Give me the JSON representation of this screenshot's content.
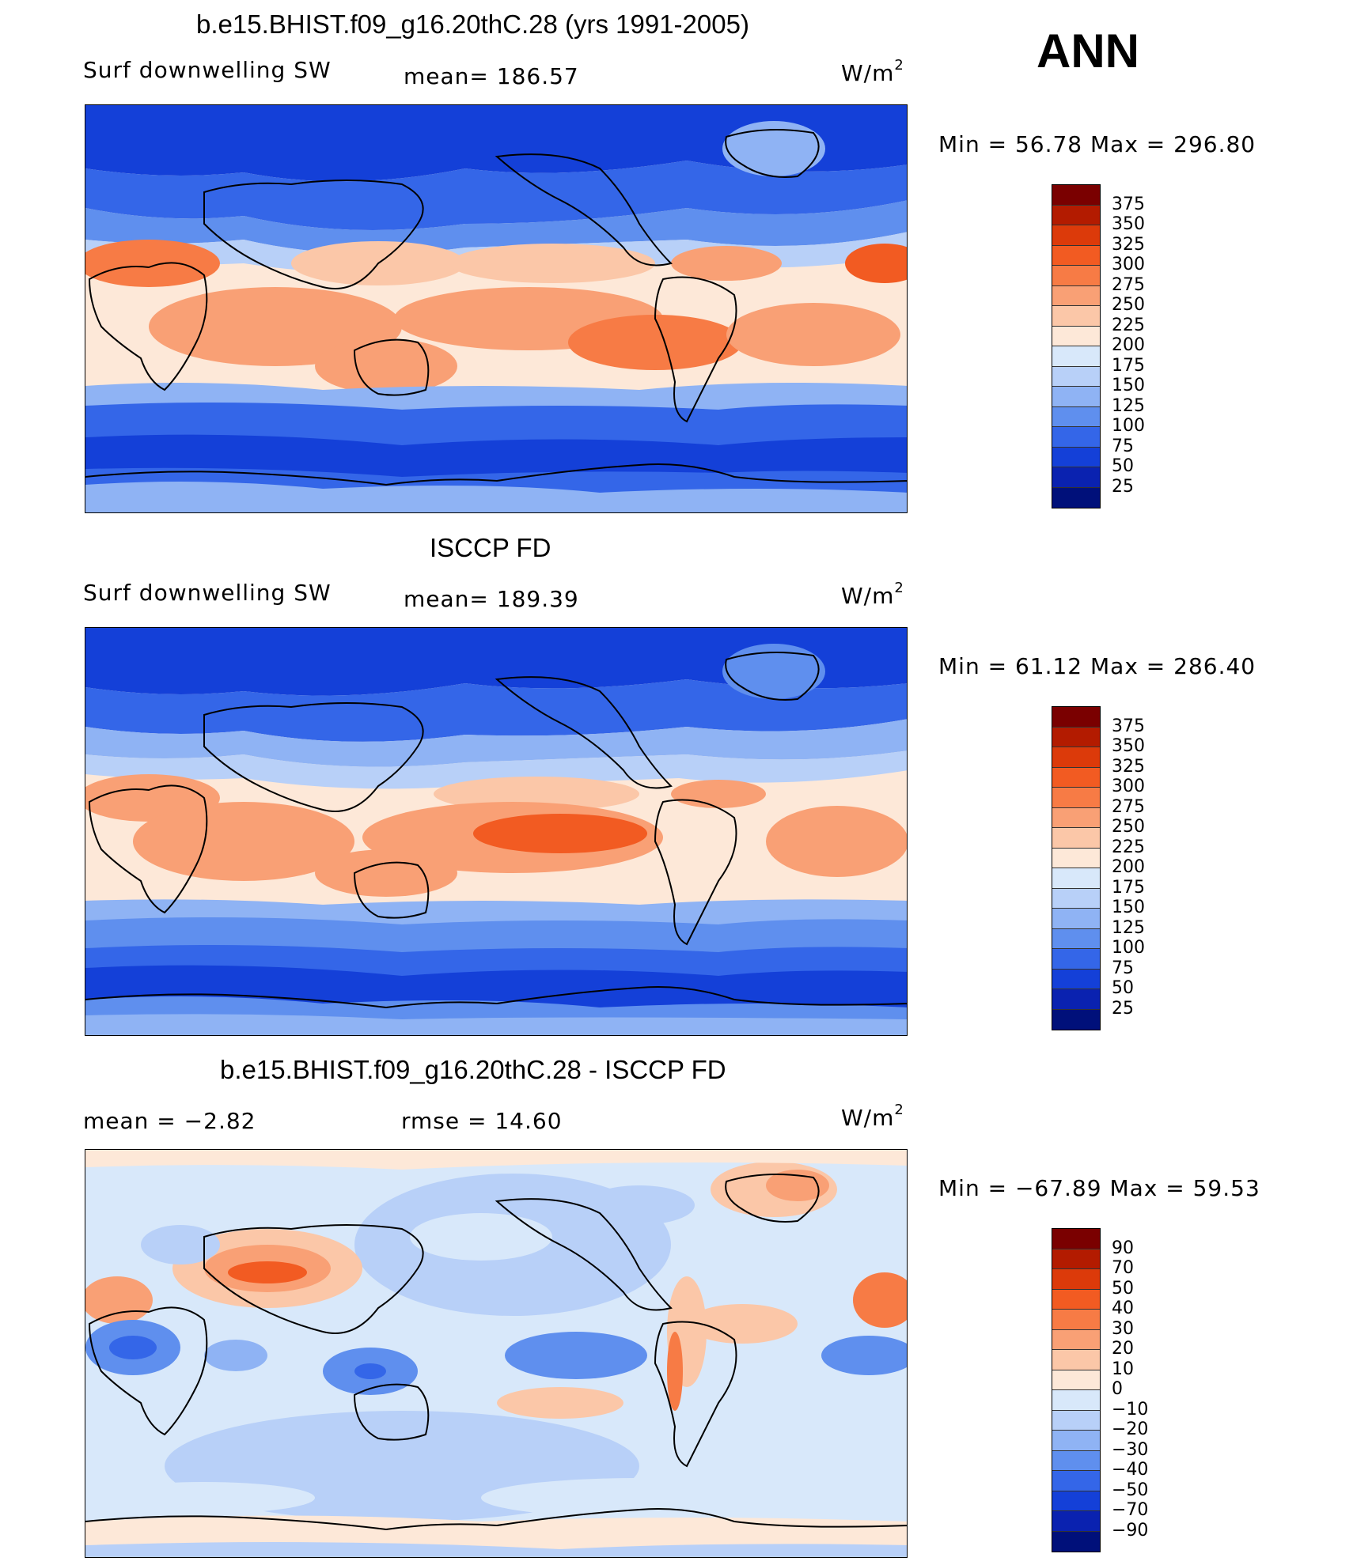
{
  "season": "ANN",
  "unit_base": "W/m",
  "unit_sup": "2",
  "panels": [
    {
      "title": "b.e15.BHIST.f09_g16.20thC.28 (yrs 1991-2005)",
      "left_label": "Surf  downwelling  SW",
      "center_label": "mean=  186.57",
      "min_max": "Min  =    56.78  Max  =  296.80"
    },
    {
      "title": "ISCCP FD",
      "left_label": "Surf  downwelling  SW",
      "center_label": "mean=  189.39",
      "min_max": "Min  =    61.12  Max  =  286.40"
    },
    {
      "title": "b.e15.BHIST.f09_g16.20thC.28 - ISCCP FD",
      "left_label": "mean  =    −2.82",
      "center_label": "rmse  =    14.60",
      "min_max": "Min  =  −67.89  Max  =    59.53"
    }
  ],
  "colorbars": {
    "abs": {
      "labels": [
        "375",
        "350",
        "325",
        "300",
        "275",
        "250",
        "225",
        "200",
        "175",
        "150",
        "125",
        "100",
        "75",
        "50",
        "25"
      ],
      "colors": [
        "#7a0000",
        "#b31b00",
        "#dc3a0a",
        "#f25b22",
        "#f77b45",
        "#f9a075",
        "#fbc7a8",
        "#fde8d8",
        "#d8e8fa",
        "#b8d0f8",
        "#8fb3f4",
        "#5f8fee",
        "#3466e8",
        "#1440d8",
        "#0a22b0",
        "#00107a"
      ]
    },
    "diff": {
      "labels": [
        "90",
        "70",
        "50",
        "40",
        "30",
        "20",
        "10",
        "0",
        "−10",
        "−20",
        "−30",
        "−40",
        "−50",
        "−70",
        "−90"
      ],
      "colors": [
        "#7a0000",
        "#b31b00",
        "#dc3a0a",
        "#f25b22",
        "#f77b45",
        "#f9a075",
        "#fbc7a8",
        "#fde8d8",
        "#d8e8fa",
        "#b8d0f8",
        "#8fb3f4",
        "#5f8fee",
        "#3466e8",
        "#1440d8",
        "#0a22b0",
        "#00107a"
      ]
    }
  }
}
